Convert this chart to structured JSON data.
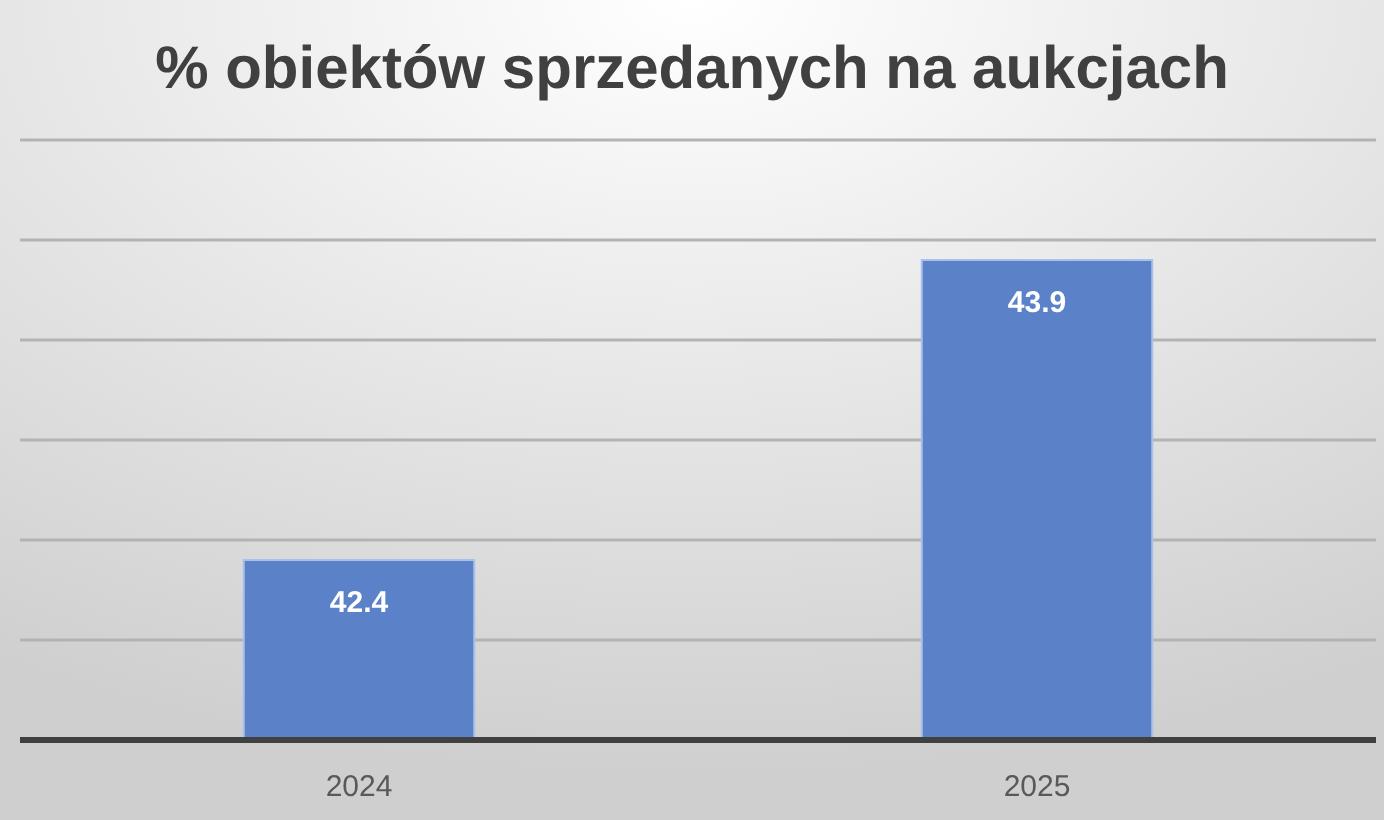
{
  "chart_data": {
    "type": "bar",
    "title": "% obiektów sprzedanych na aukcjach",
    "categories": [
      "2024",
      "2025"
    ],
    "series": [
      {
        "color": "#5b82c8",
        "values": [
          42.4,
          43.9
        ]
      }
    ],
    "ylim": [
      41.5,
      44.5
    ],
    "yticks": [
      {
        "value": 41.5,
        "label": null
      },
      {
        "value": 42,
        "label": null
      },
      {
        "value": 42.5,
        "label": null
      },
      {
        "value": 43,
        "label": null
      },
      {
        "value": 43.5,
        "label": null
      },
      {
        "value": 44,
        "label": null
      },
      {
        "value": 44.5,
        "label": null
      }
    ],
    "tick_labels": "x",
    "grid": "y",
    "data_labels": true
  }
}
